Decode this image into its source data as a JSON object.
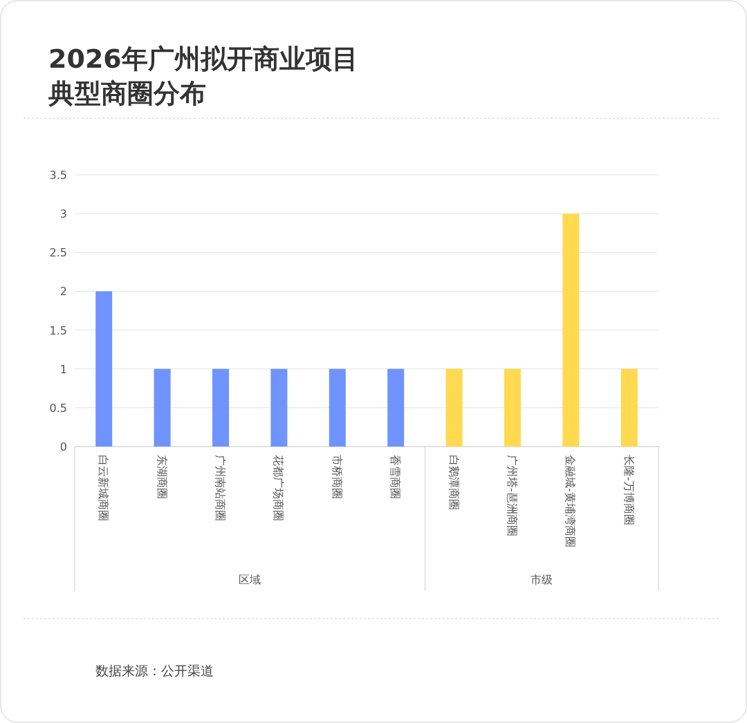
{
  "chart_data": {
    "type": "bar",
    "title": "2026年广州拟开商业项目典型商圈分布",
    "categories": [
      "白云新城商圈",
      "东湖商圈",
      "广州南站商圈",
      "花都广场商圈",
      "市桥商圈",
      "香雪商圈",
      "白鹅潭商圈",
      "广州塔-琶洲商圈",
      "金融城-黄埔湾商圈",
      "长隆-万博商圈"
    ],
    "values": [
      2,
      1,
      1,
      1,
      1,
      1,
      1,
      1,
      3,
      1
    ],
    "colors": [
      "#6f93ff",
      "#6f93ff",
      "#6f93ff",
      "#6f93ff",
      "#6f93ff",
      "#6f93ff",
      "#ffd94f",
      "#ffd94f",
      "#ffd94f",
      "#ffd94f"
    ],
    "ylim": [
      0,
      3.5
    ],
    "yticks": [
      0,
      0.5,
      1,
      1.5,
      2,
      2.5,
      3,
      3.5
    ],
    "grid": "y",
    "annotations": [
      "区域",
      "市级",
      "数据来源：公开渠道"
    ]
  }
}
